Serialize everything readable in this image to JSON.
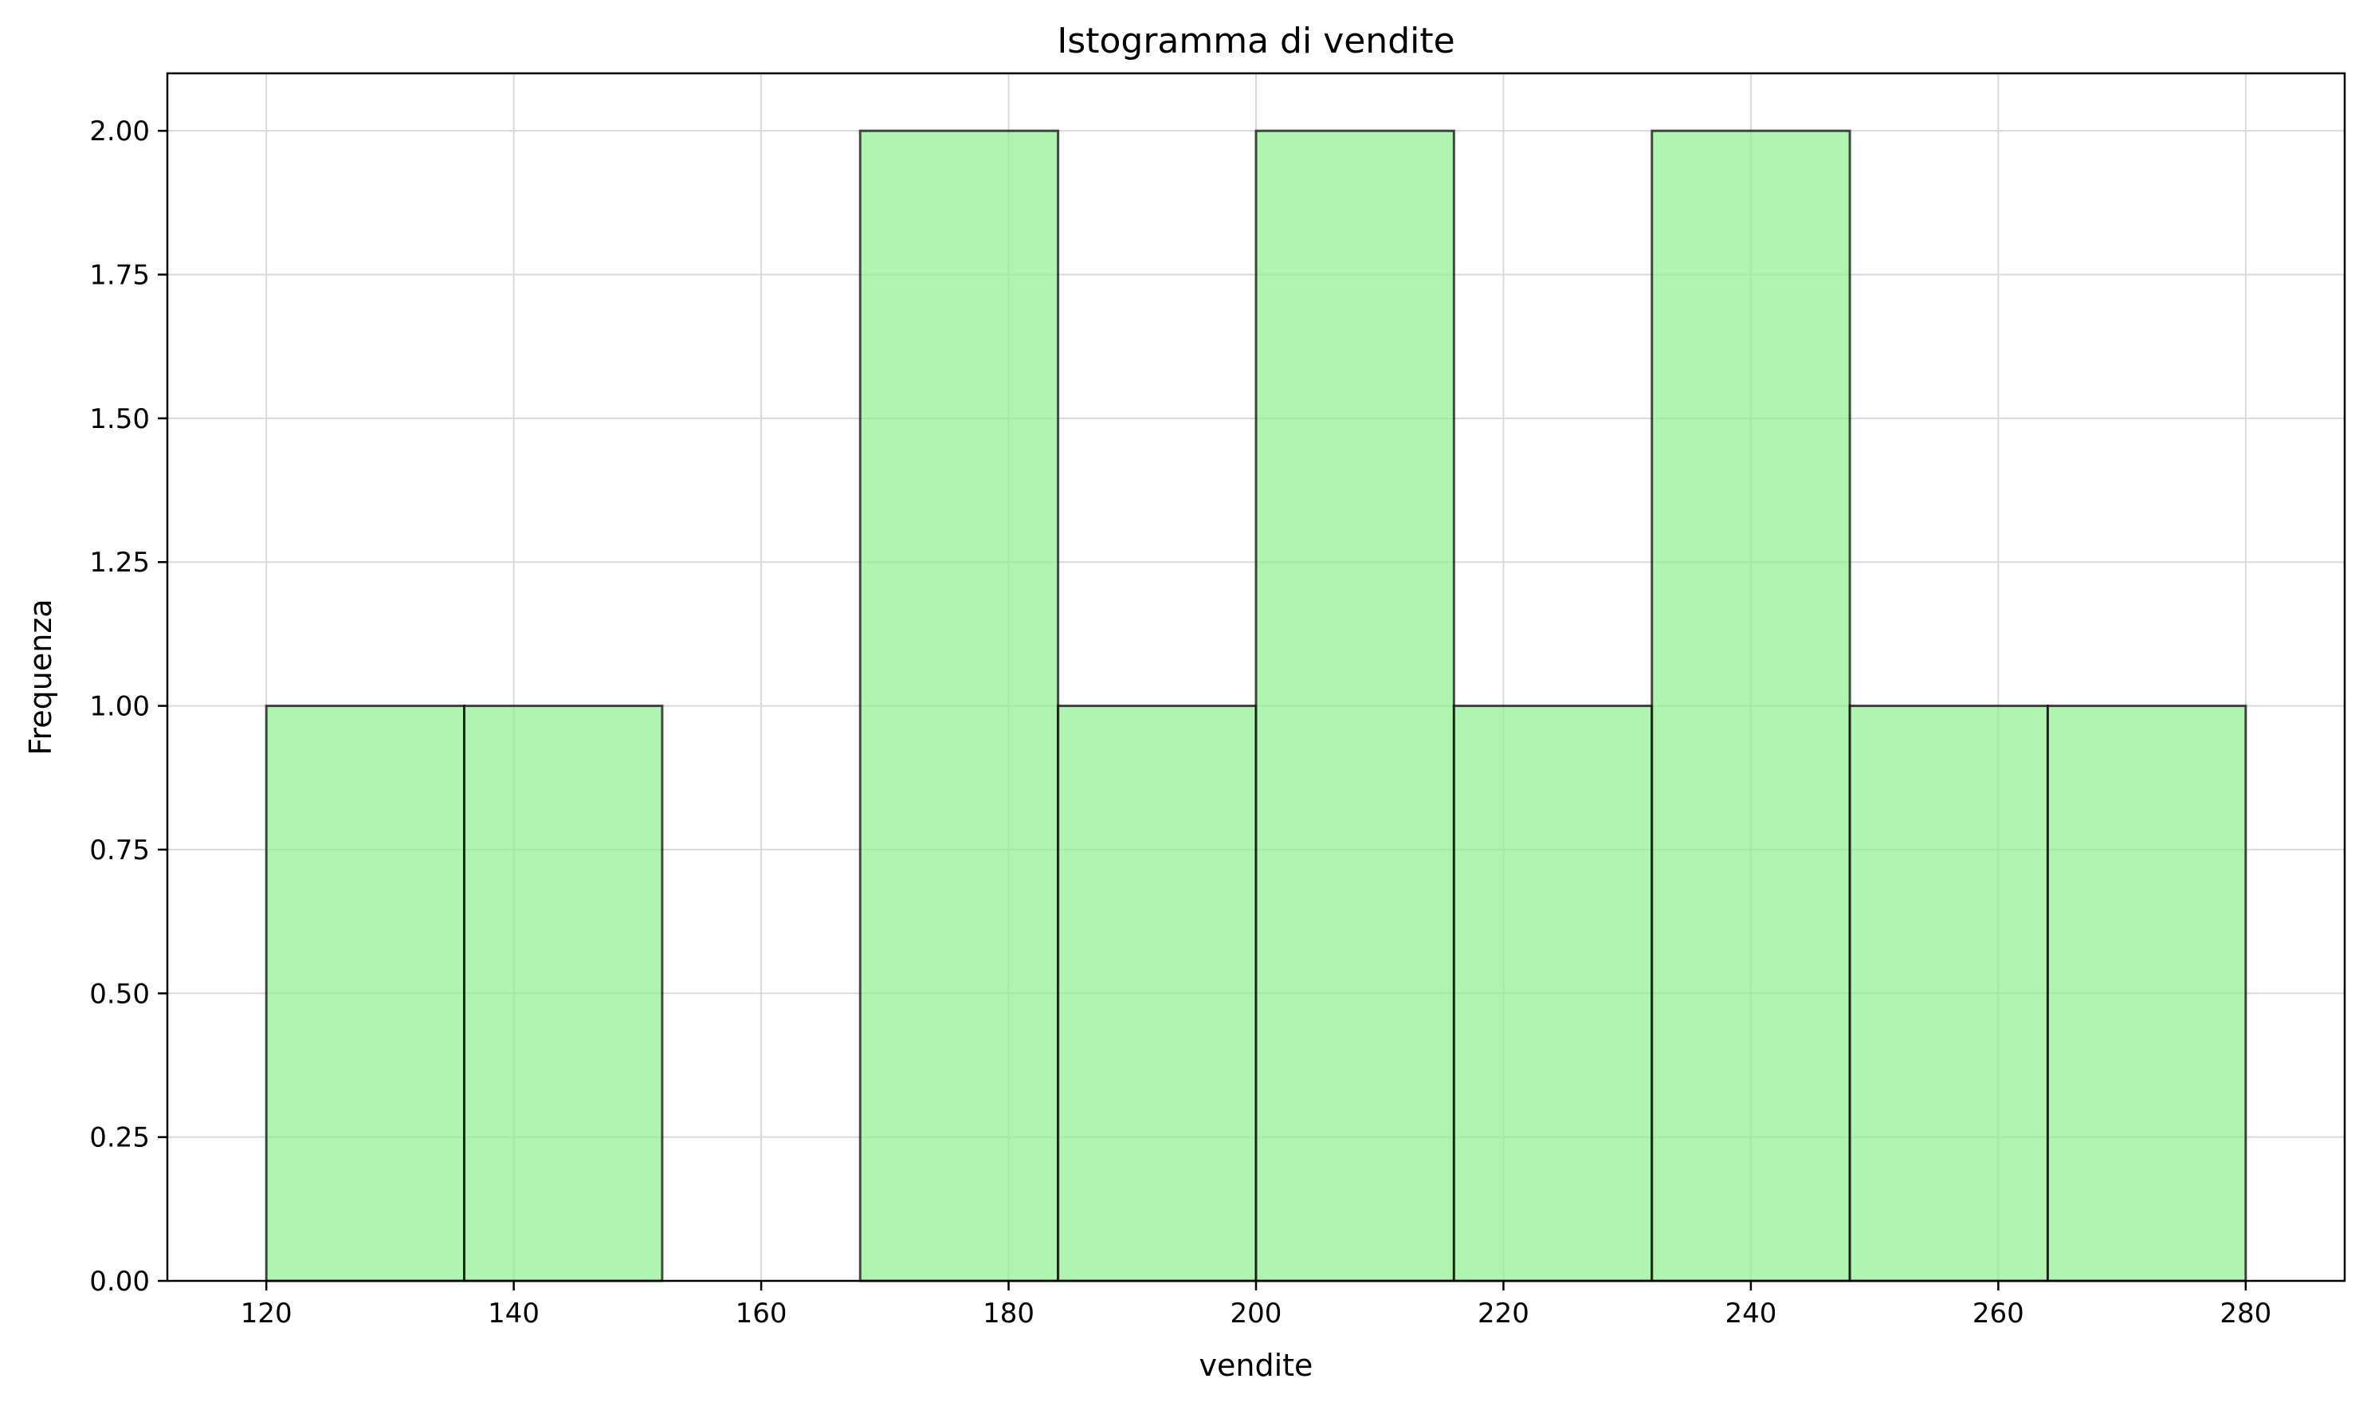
{
  "chart_data": {
    "type": "bar",
    "title": "Istogramma di vendite",
    "xlabel": "vendite",
    "ylabel": "Frequenza",
    "bin_edges": [
      120,
      136,
      152,
      168,
      184,
      200,
      216,
      232,
      248,
      264,
      280
    ],
    "values": [
      1,
      1,
      0,
      2,
      1,
      2,
      1,
      2,
      1,
      1
    ],
    "xlim": [
      112,
      288
    ],
    "ylim": [
      0,
      2.1
    ],
    "x_ticks": [
      120,
      140,
      160,
      180,
      200,
      220,
      240,
      260,
      280
    ],
    "y_ticks": [
      0,
      0.25,
      0.5,
      0.75,
      1.0,
      1.25,
      1.5,
      1.75,
      2.0
    ],
    "x_tick_labels": [
      "120",
      "140",
      "160",
      "180",
      "200",
      "220",
      "240",
      "260",
      "280"
    ],
    "y_tick_labels": [
      "0.00",
      "0.25",
      "0.50",
      "0.75",
      "1.00",
      "1.25",
      "1.50",
      "1.75",
      "2.00"
    ],
    "grid": true,
    "legend": false,
    "colors": {
      "bar_fill": "#90ee90",
      "bar_fill_opacity": 0.7,
      "bar_edge": "#000000",
      "grid": "#d9d9d9",
      "axes": "#000000"
    }
  }
}
